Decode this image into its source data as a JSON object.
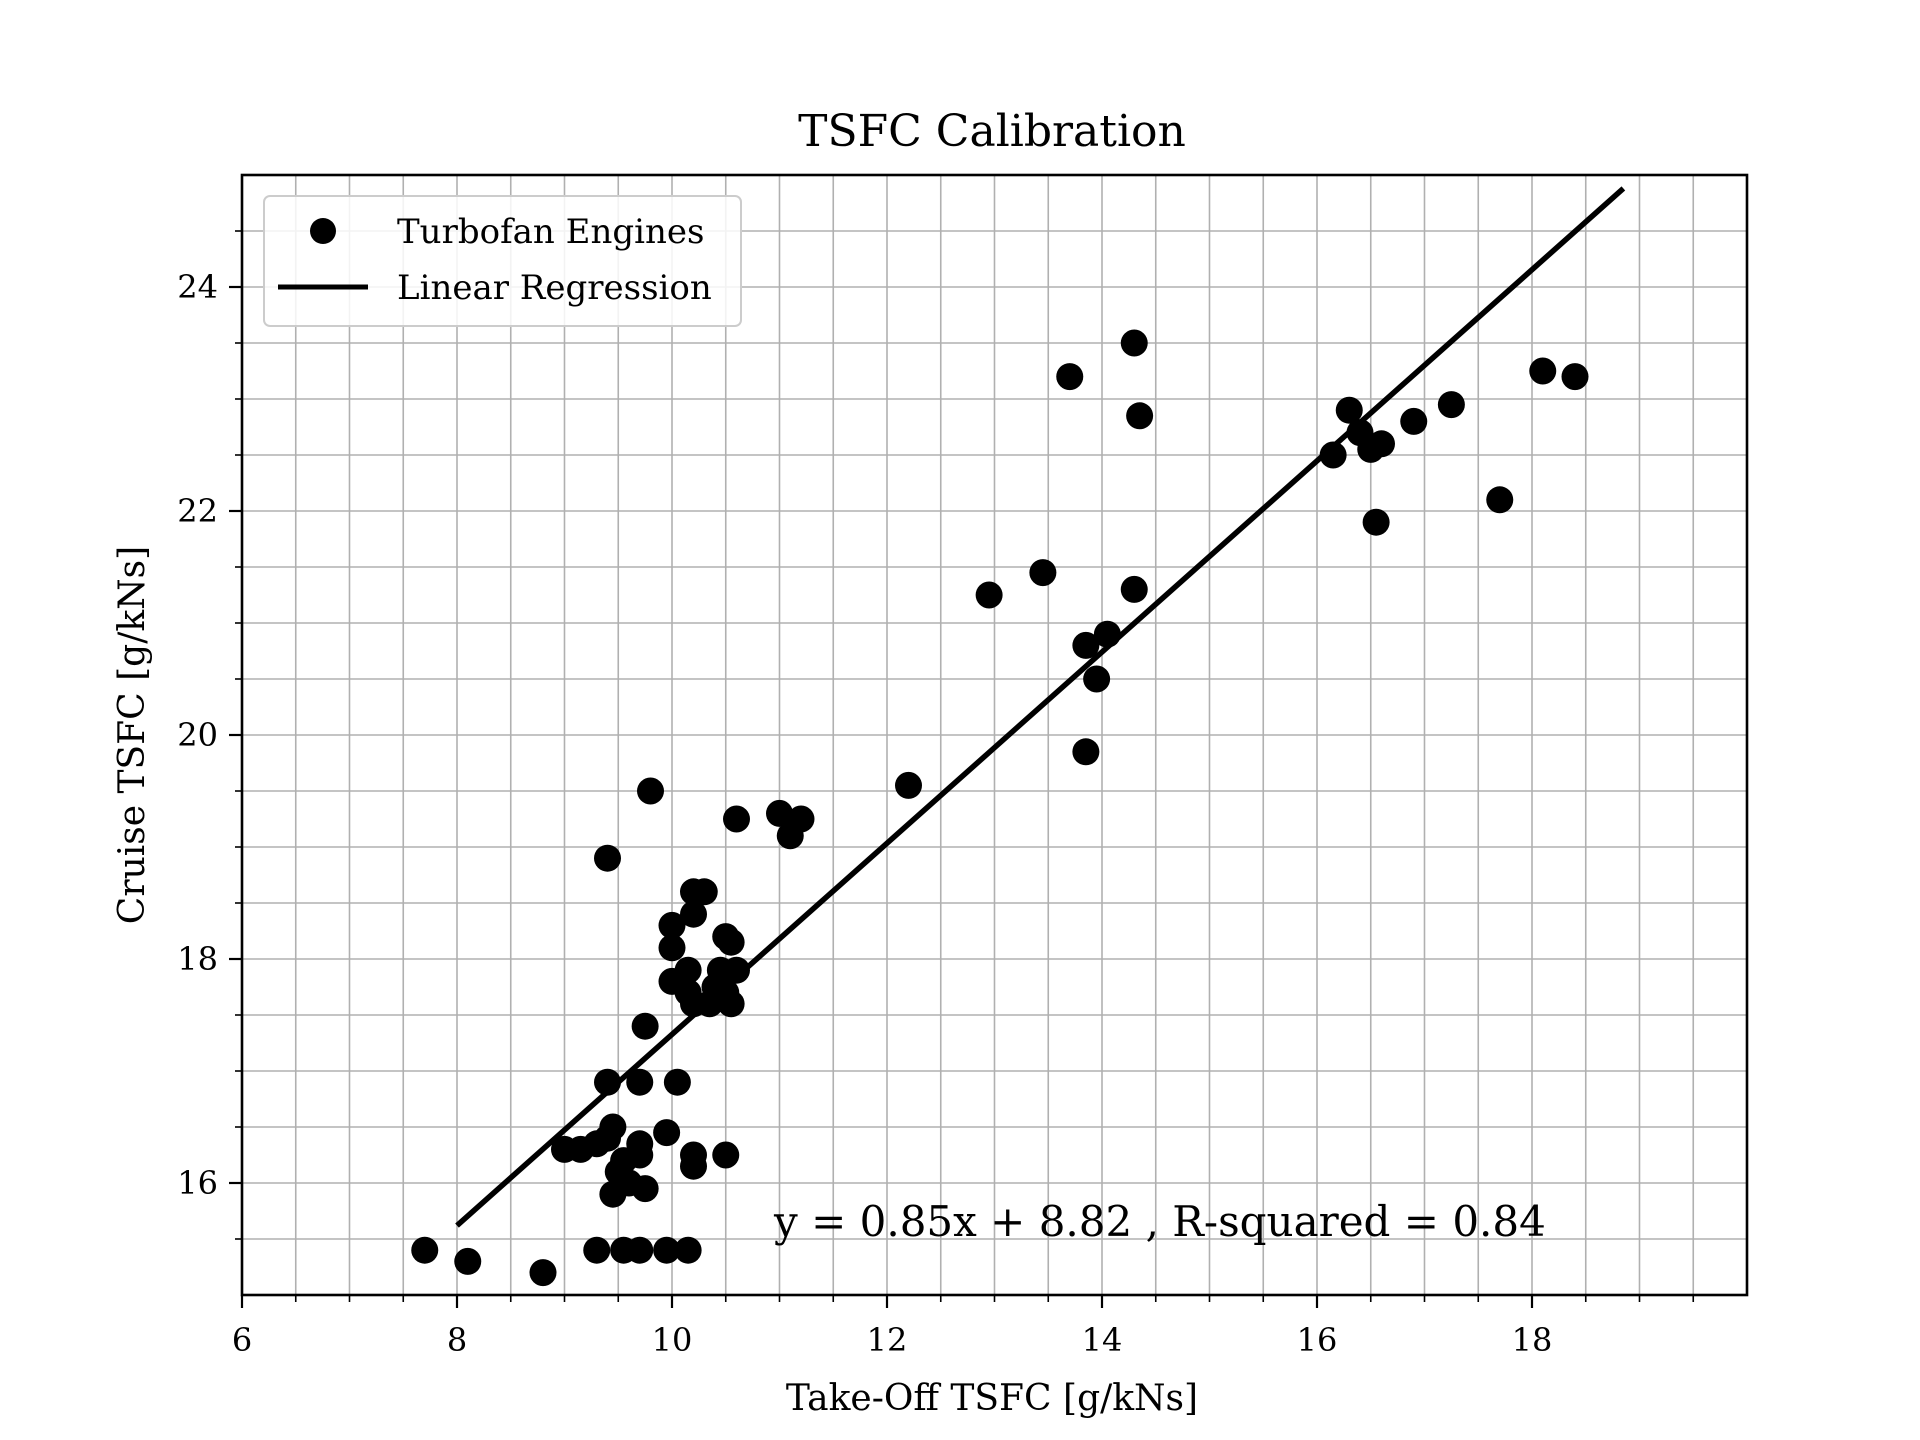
{
  "chart_data": {
    "type": "scatter",
    "title": "TSFC Calibration",
    "xlabel": "Take-Off TSFC [g/kNs]",
    "ylabel": "Cruise TSFC [g/kNs]",
    "xlim": [
      6,
      20
    ],
    "ylim": [
      15,
      25
    ],
    "xticks": [
      6,
      8,
      10,
      12,
      14,
      16,
      18
    ],
    "xtick_labels": [
      "6",
      "8",
      "10",
      "12",
      "14",
      "16",
      "18"
    ],
    "yticks": [
      16,
      18,
      20,
      22,
      24
    ],
    "ytick_labels": [
      "16",
      "18",
      "20",
      "22",
      "24"
    ],
    "x_minor_step": 0.5,
    "y_minor_step": 0.5,
    "grid": true,
    "legend_position": "top-left",
    "legend": [
      {
        "label": "Turbofan Engines",
        "marker": "circle"
      },
      {
        "label": "Linear Regression",
        "marker": "line"
      }
    ],
    "annotation": "y = 0.85x + 8.82 , R-squared = 0.84",
    "series": [
      {
        "name": "Turbofan Engines",
        "kind": "scatter",
        "color": "#000000",
        "points": [
          [
            7.7,
            15.4
          ],
          [
            8.1,
            15.3
          ],
          [
            8.8,
            15.2
          ],
          [
            9.3,
            15.4
          ],
          [
            9.55,
            15.4
          ],
          [
            9.7,
            15.4
          ],
          [
            9.95,
            15.4
          ],
          [
            10.15,
            15.4
          ],
          [
            9.0,
            16.3
          ],
          [
            9.15,
            16.3
          ],
          [
            9.3,
            16.35
          ],
          [
            9.4,
            16.4
          ],
          [
            9.45,
            16.5
          ],
          [
            9.5,
            16.1
          ],
          [
            9.55,
            16.2
          ],
          [
            9.45,
            15.9
          ],
          [
            9.6,
            16.0
          ],
          [
            9.75,
            15.95
          ],
          [
            9.7,
            16.25
          ],
          [
            9.7,
            16.35
          ],
          [
            9.95,
            16.45
          ],
          [
            10.2,
            16.25
          ],
          [
            10.2,
            16.15
          ],
          [
            10.5,
            16.25
          ],
          [
            9.4,
            16.9
          ],
          [
            9.7,
            16.9
          ],
          [
            10.05,
            16.9
          ],
          [
            9.75,
            17.4
          ],
          [
            10.0,
            17.8
          ],
          [
            10.15,
            17.7
          ],
          [
            10.15,
            17.9
          ],
          [
            10.2,
            17.6
          ],
          [
            10.35,
            17.6
          ],
          [
            10.4,
            17.75
          ],
          [
            10.45,
            17.9
          ],
          [
            10.5,
            17.7
          ],
          [
            10.55,
            17.6
          ],
          [
            10.6,
            17.9
          ],
          [
            10.0,
            18.1
          ],
          [
            10.0,
            18.3
          ],
          [
            10.2,
            18.4
          ],
          [
            10.2,
            18.6
          ],
          [
            10.3,
            18.6
          ],
          [
            10.5,
            18.2
          ],
          [
            10.55,
            18.15
          ],
          [
            9.4,
            18.9
          ],
          [
            9.8,
            19.5
          ],
          [
            10.6,
            19.25
          ],
          [
            11.0,
            19.3
          ],
          [
            11.1,
            19.1
          ],
          [
            11.2,
            19.25
          ],
          [
            12.2,
            19.55
          ],
          [
            12.95,
            21.25
          ],
          [
            13.45,
            21.45
          ],
          [
            13.7,
            23.2
          ],
          [
            13.85,
            19.85
          ],
          [
            13.85,
            20.8
          ],
          [
            13.95,
            20.5
          ],
          [
            14.05,
            20.9
          ],
          [
            14.3,
            23.5
          ],
          [
            14.3,
            21.3
          ],
          [
            14.35,
            22.85
          ],
          [
            16.15,
            22.5
          ],
          [
            16.3,
            22.9
          ],
          [
            16.4,
            22.7
          ],
          [
            16.5,
            22.55
          ],
          [
            16.6,
            22.6
          ],
          [
            16.55,
            21.9
          ],
          [
            16.9,
            22.8
          ],
          [
            17.25,
            22.95
          ],
          [
            17.7,
            22.1
          ],
          [
            18.1,
            23.25
          ],
          [
            18.4,
            23.2
          ]
        ]
      },
      {
        "name": "Linear Regression",
        "kind": "line",
        "color": "#000000",
        "points": [
          [
            8.0,
            15.62
          ],
          [
            18.85,
            24.88
          ]
        ]
      }
    ]
  }
}
